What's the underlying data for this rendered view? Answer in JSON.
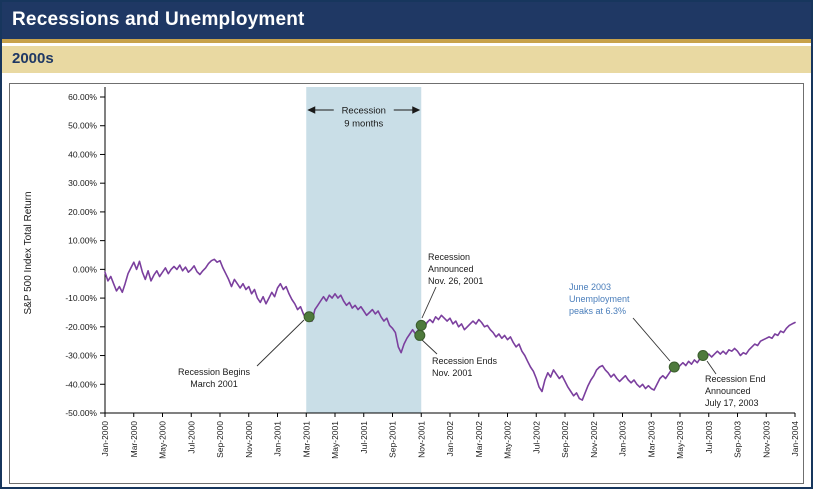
{
  "header": {
    "title": "Recessions and Unemployment",
    "subtitle": "2000s"
  },
  "colors": {
    "navy": "#1F3864",
    "gold": "#C8A24B",
    "tan": "#E9D9A2",
    "recession_band": "#C9DEE7",
    "line": "#7B3F9E",
    "marker_green": "#4E7A3C",
    "marker_edge": "#3A5C2C",
    "blue_note": "#4A7EBB",
    "black_note": "#1a1a1a"
  },
  "chart_data": {
    "type": "line",
    "title": "",
    "xlabel": "",
    "ylabel": "S&P 500 Index Total Return",
    "ylim": [
      -50,
      60
    ],
    "grid": false,
    "legend": "none",
    "y_ticks": [
      "60.00%",
      "50.00%",
      "40.00%",
      "30.00%",
      "20.00%",
      "10.00%",
      "0.00%",
      "-10.00%",
      "-20.00%",
      "-30.00%",
      "-40.00%",
      "-50.00%"
    ],
    "x_ticks": [
      "Jan-2000",
      "Mar-2000",
      "May-2000",
      "Jul-2000",
      "Sep-2000",
      "Nov-2000",
      "Jan-2001",
      "Mar-2001",
      "May-2001",
      "Jul-2001",
      "Sep-2001",
      "Nov-2001",
      "Jan-2002",
      "Mar-2002",
      "May-2002",
      "Jul-2002",
      "Sep-2002",
      "Nov-2002",
      "Jan-2003",
      "Mar-2003",
      "May-2003",
      "Jul-2003",
      "Sep-2003",
      "Nov-2003",
      "Jan-2004"
    ],
    "x_tick_step_months": 2,
    "series": {
      "name": "S&P 500 Index Total Return (%)",
      "start_month": 0,
      "step_months": 0.2,
      "values": [
        -1,
        -4,
        -2.5,
        -5,
        -7.5,
        -6,
        -8,
        -5,
        -1.5,
        0.5,
        2.5,
        0,
        2.8,
        -1,
        -3.5,
        -0.5,
        -4,
        -2,
        -0.5,
        -2.5,
        -1,
        0.5,
        -1.5,
        0,
        1,
        0,
        1.5,
        -0.5,
        0.8,
        -1,
        0,
        1.2,
        -0.8,
        -1.8,
        -0.5,
        0.5,
        2,
        3,
        3.5,
        2.5,
        3,
        0.5,
        -1.5,
        -3.5,
        -6,
        -3.5,
        -5,
        -6.5,
        -5,
        -7,
        -6,
        -8.5,
        -7,
        -10,
        -11.5,
        -9.5,
        -12,
        -10,
        -8,
        -9.5,
        -6.5,
        -5,
        -7,
        -6,
        -8.5,
        -10.5,
        -12,
        -14,
        -13,
        -15.5,
        -17.5,
        -16,
        -18,
        -14,
        -12.5,
        -11,
        -9.5,
        -11,
        -9,
        -10,
        -8.5,
        -10,
        -9,
        -11,
        -12.5,
        -11.5,
        -13.5,
        -12.5,
        -14,
        -13,
        -14.5,
        -16,
        -15,
        -14,
        -15.5,
        -14.5,
        -16.5,
        -18,
        -17,
        -19.5,
        -20.5,
        -22,
        -27,
        -29,
        -26,
        -24,
        -22.5,
        -21,
        -22.5,
        -21,
        -19.5,
        -20.5,
        -18.5,
        -17.5,
        -18.5,
        -16.5,
        -17.5,
        -16,
        -17,
        -18,
        -17,
        -19,
        -18,
        -20,
        -19,
        -21,
        -20,
        -19,
        -18,
        -19,
        -17.5,
        -18.5,
        -20,
        -19.5,
        -21,
        -22,
        -23.5,
        -22.5,
        -24,
        -23,
        -24.5,
        -23.5,
        -25.5,
        -27,
        -26,
        -28.5,
        -30,
        -32,
        -34,
        -35.5,
        -38,
        -41,
        -42.5,
        -38.5,
        -36,
        -37.5,
        -35,
        -36.5,
        -38,
        -37,
        -39,
        -41,
        -42.5,
        -44,
        -43,
        -45,
        -45.5,
        -43,
        -40.5,
        -38.5,
        -37,
        -35,
        -34,
        -33.5,
        -35,
        -36,
        -37.5,
        -36.5,
        -38,
        -39,
        -38,
        -37,
        -38.5,
        -39.5,
        -38.5,
        -40,
        -41,
        -40,
        -41.5,
        -40.5,
        -41.5,
        -42,
        -40,
        -38,
        -37,
        -38,
        -36.5,
        -35,
        -34,
        -34.5,
        -33.5,
        -32.5,
        -33.5,
        -32,
        -33,
        -31.5,
        -32.5,
        -31,
        -30,
        -30.5,
        -29.5,
        -30.5,
        -29.5,
        -28.5,
        -29.5,
        -28.5,
        -29.5,
        -28,
        -28.5,
        -27.5,
        -28.5,
        -30,
        -29,
        -29.5,
        -28,
        -27,
        -26,
        -26.5,
        -25,
        -24.5,
        -24,
        -23.5,
        -24,
        -22.5,
        -23,
        -21.5,
        -22,
        -20.5,
        -19.5,
        -19,
        -18.5
      ]
    },
    "recession_band": {
      "start_month": 14,
      "end_month": 22,
      "label_line1": "Recession",
      "label_line2": "9 months"
    },
    "markers": [
      {
        "name": "recession-begins-marker",
        "month": 14.2,
        "value": -16.5
      },
      {
        "name": "recession-announced-marker",
        "month": 22,
        "value": -19.5
      },
      {
        "name": "recession-ends-marker",
        "month": 21.9,
        "value": -23
      },
      {
        "name": "unemployment-peak-marker",
        "month": 39.6,
        "value": -34
      },
      {
        "name": "recession-end-announced-marker",
        "month": 41.6,
        "value": -30
      }
    ],
    "annotations": [
      {
        "name": "recession-begins-note",
        "lines": [
          "Recession Begins",
          "March 2001"
        ],
        "color": "#1a1a1a"
      },
      {
        "name": "recession-announced-note",
        "lines": [
          "Recession",
          "Announced",
          "Nov. 26, 2001"
        ],
        "color": "#1a1a1a"
      },
      {
        "name": "recession-ends-note",
        "lines": [
          "Recession Ends",
          "Nov. 2001"
        ],
        "color": "#1a1a1a"
      },
      {
        "name": "unemployment-note",
        "lines": [
          "June 2003",
          "Unemployment",
          "peaks at 6.3%"
        ],
        "color": "#4A7EBB"
      },
      {
        "name": "recession-end-announced-note",
        "lines": [
          "Recession End",
          "Announced",
          "July 17, 2003"
        ],
        "color": "#1a1a1a"
      }
    ]
  }
}
